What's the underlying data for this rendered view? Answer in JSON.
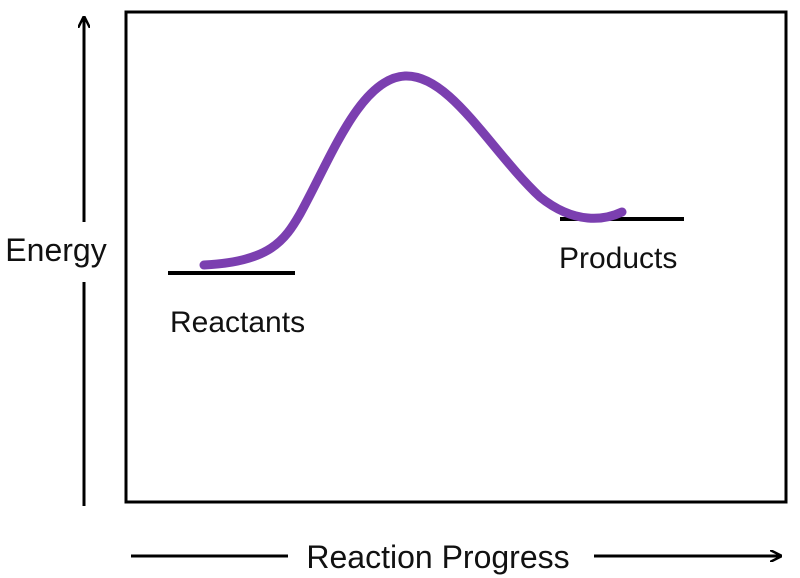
{
  "diagram": {
    "y_axis_label": "Energy",
    "x_axis_label": "Reaction Progress",
    "reactants_label": "Reactants",
    "products_label": "Products",
    "curve_color": "#7B3FB0",
    "line_color": "#000000",
    "levels": {
      "reactants": "low",
      "products": "intermediate",
      "transition_state": "peak"
    }
  }
}
